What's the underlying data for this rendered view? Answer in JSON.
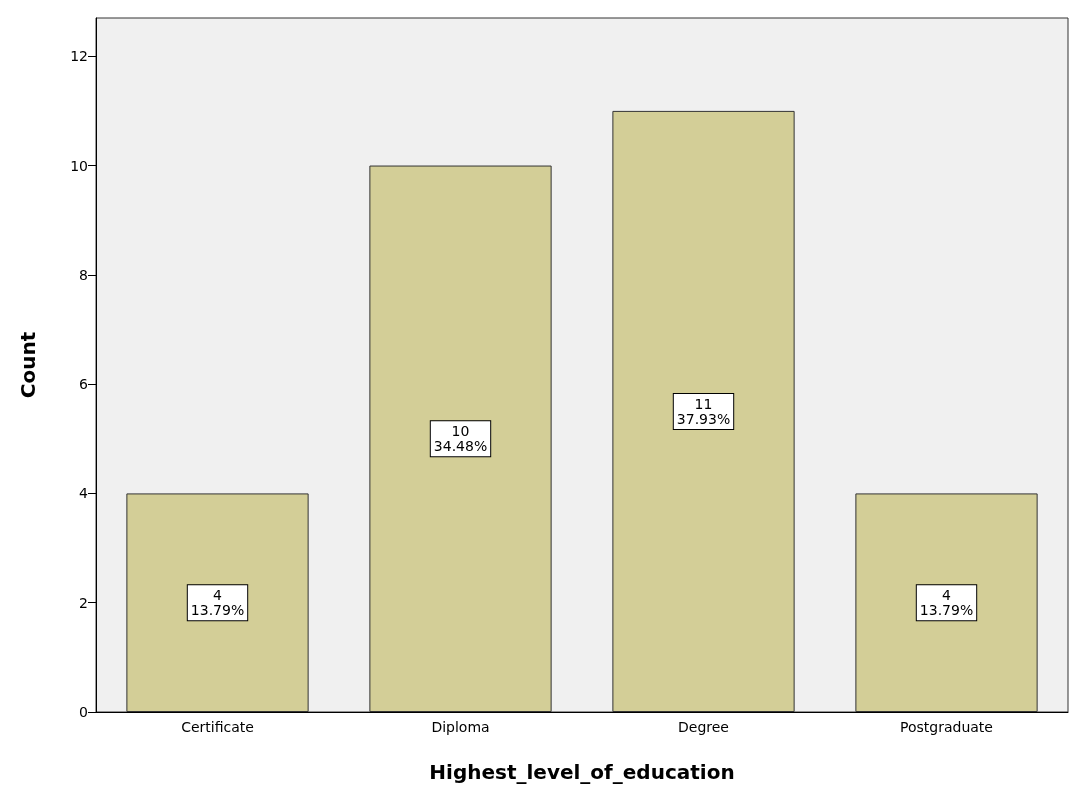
{
  "chart_data": {
    "type": "bar",
    "xlabel": "Highest_level_of_education",
    "ylabel": "Count",
    "categories": [
      "Certificate",
      "Diploma",
      "Degree",
      "Postgraduate"
    ],
    "values": [
      4,
      10,
      11,
      4
    ],
    "value_labels": [
      "4\n13.79%",
      "10\n34.48%",
      "11\n37.93%",
      "4\n13.79%"
    ],
    "color": "#d3ce97",
    "ylim": [
      0,
      12.7
    ],
    "yticks": [
      0,
      2,
      4,
      6,
      8,
      10,
      12
    ],
    "grid": false
  }
}
